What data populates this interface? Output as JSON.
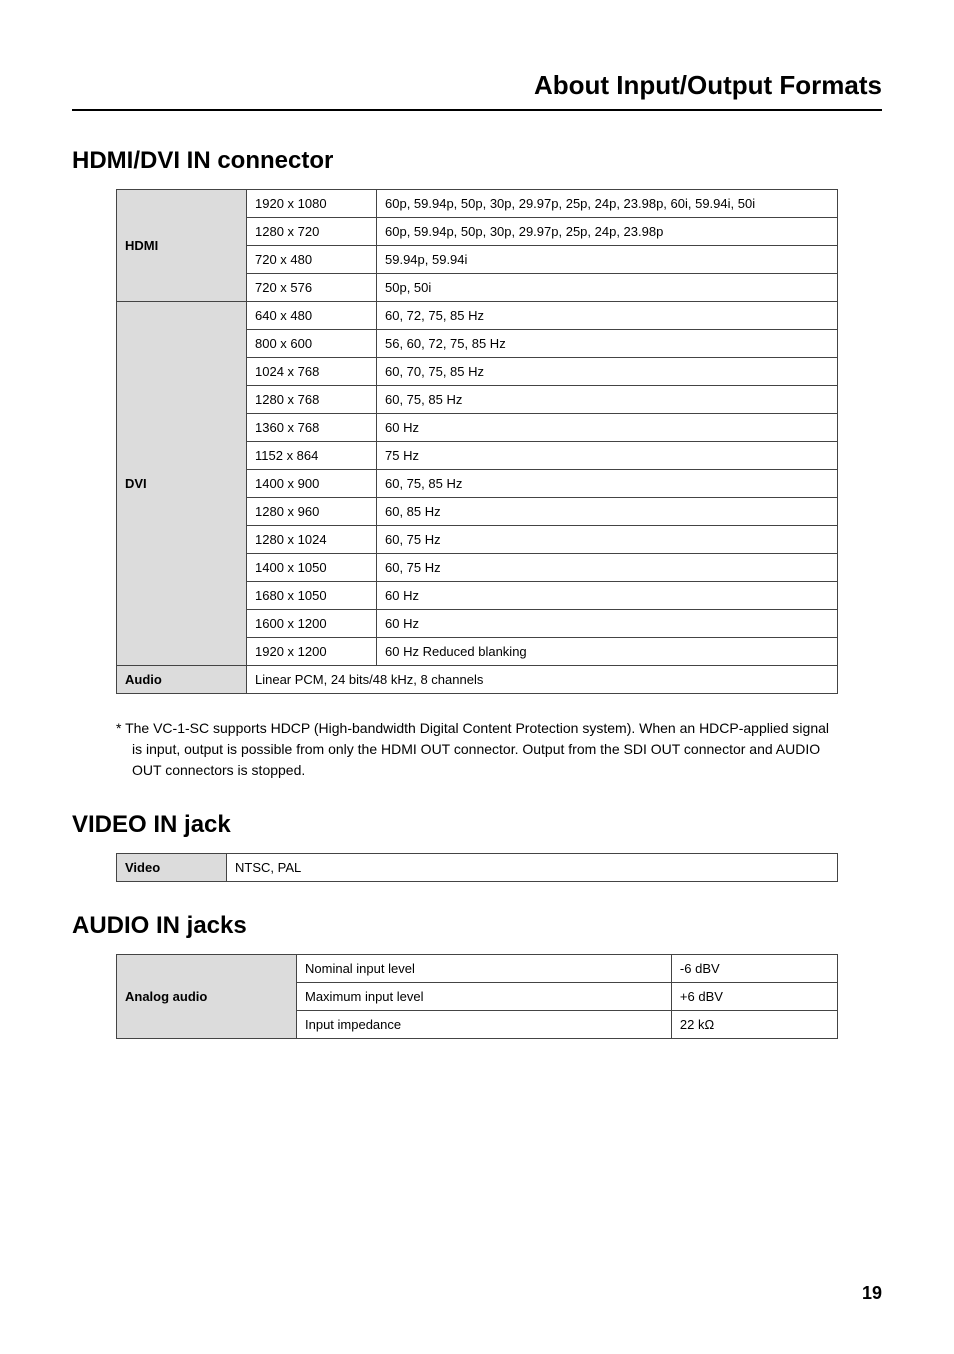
{
  "page_title": "About Input/Output Formats",
  "hdmi_section": {
    "title": "HDMI/DVI IN connector",
    "hdmi_label": "HDMI",
    "dvi_label": "DVI",
    "audio_label": "Audio",
    "hdmi_rows": [
      {
        "res": "1920 x 1080",
        "fmt": "60p, 59.94p, 50p, 30p, 29.97p, 25p, 24p, 23.98p, 60i, 59.94i, 50i"
      },
      {
        "res": "1280 x 720",
        "fmt": "60p, 59.94p, 50p, 30p, 29.97p, 25p, 24p, 23.98p"
      },
      {
        "res": "720 x 480",
        "fmt": "59.94p, 59.94i"
      },
      {
        "res": "720 x 576",
        "fmt": "50p, 50i"
      }
    ],
    "dvi_rows": [
      {
        "res": "640 x 480",
        "fmt": "60, 72, 75, 85 Hz"
      },
      {
        "res": "800 x 600",
        "fmt": "56, 60, 72, 75, 85 Hz"
      },
      {
        "res": "1024 x 768",
        "fmt": "60, 70, 75, 85 Hz"
      },
      {
        "res": "1280 x 768",
        "fmt": "60, 75, 85 Hz"
      },
      {
        "res": "1360 x 768",
        "fmt": "60 Hz"
      },
      {
        "res": "1152 x 864",
        "fmt": "75 Hz"
      },
      {
        "res": "1400 x 900",
        "fmt": "60, 75, 85 Hz"
      },
      {
        "res": "1280 x 960",
        "fmt": "60, 85 Hz"
      },
      {
        "res": "1280 x 1024",
        "fmt": "60, 75 Hz"
      },
      {
        "res": "1400 x 1050",
        "fmt": "60, 75 Hz"
      },
      {
        "res": "1680 x 1050",
        "fmt": "60 Hz"
      },
      {
        "res": "1600 x 1200",
        "fmt": "60 Hz"
      },
      {
        "res": "1920 x 1200",
        "fmt": "60 Hz Reduced blanking"
      }
    ],
    "audio_value": "Linear PCM, 24 bits/48 kHz, 8 channels",
    "footnote": "* The VC-1-SC supports HDCP (High-bandwidth Digital Content Protection system). When an HDCP-applied signal is input, output is possible from only the HDMI OUT connector. Output from the SDI OUT connector and AUDIO OUT connectors is stopped."
  },
  "video_section": {
    "title": "VIDEO IN jack",
    "label": "Video",
    "value": "NTSC, PAL"
  },
  "audio_section": {
    "title": "AUDIO IN jacks",
    "label": "Analog audio",
    "rows": [
      {
        "param": "Nominal input level",
        "val": "-6 dBV"
      },
      {
        "param": "Maximum input level",
        "val": "+6 dBV"
      },
      {
        "param": "Input impedance",
        "val": "22 kΩ"
      }
    ]
  },
  "page_number": "19",
  "style": {
    "header_bg": "#dcdcdc",
    "border_color": "#444444",
    "text_color": "#000000",
    "body_font_size": 13,
    "title_font_size": 26,
    "section_font_size": 24
  }
}
